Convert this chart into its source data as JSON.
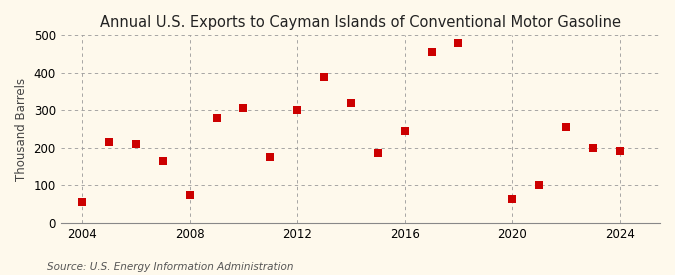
{
  "title": "Annual U.S. Exports to Cayman Islands of Conventional Motor Gasoline",
  "ylabel": "Thousand Barrels",
  "source": "Source: U.S. Energy Information Administration",
  "years": [
    2004,
    2005,
    2006,
    2007,
    2008,
    2009,
    2010,
    2011,
    2012,
    2013,
    2014,
    2015,
    2016,
    2017,
    2018,
    2020,
    2021,
    2022,
    2023,
    2024
  ],
  "values": [
    55,
    215,
    210,
    165,
    75,
    280,
    305,
    175,
    300,
    390,
    320,
    185,
    245,
    455,
    480,
    65,
    100,
    255,
    200,
    192
  ],
  "marker_color": "#cc0000",
  "marker_size": 28,
  "xlim": [
    2003.2,
    2025.5
  ],
  "ylim": [
    0,
    500
  ],
  "yticks": [
    0,
    100,
    200,
    300,
    400,
    500
  ],
  "xticks": [
    2004,
    2008,
    2012,
    2016,
    2020,
    2024
  ],
  "background_color": "#fef9ec",
  "grid_color": "#999999",
  "title_fontsize": 10.5,
  "label_fontsize": 8.5,
  "tick_fontsize": 8.5,
  "source_fontsize": 7.5
}
